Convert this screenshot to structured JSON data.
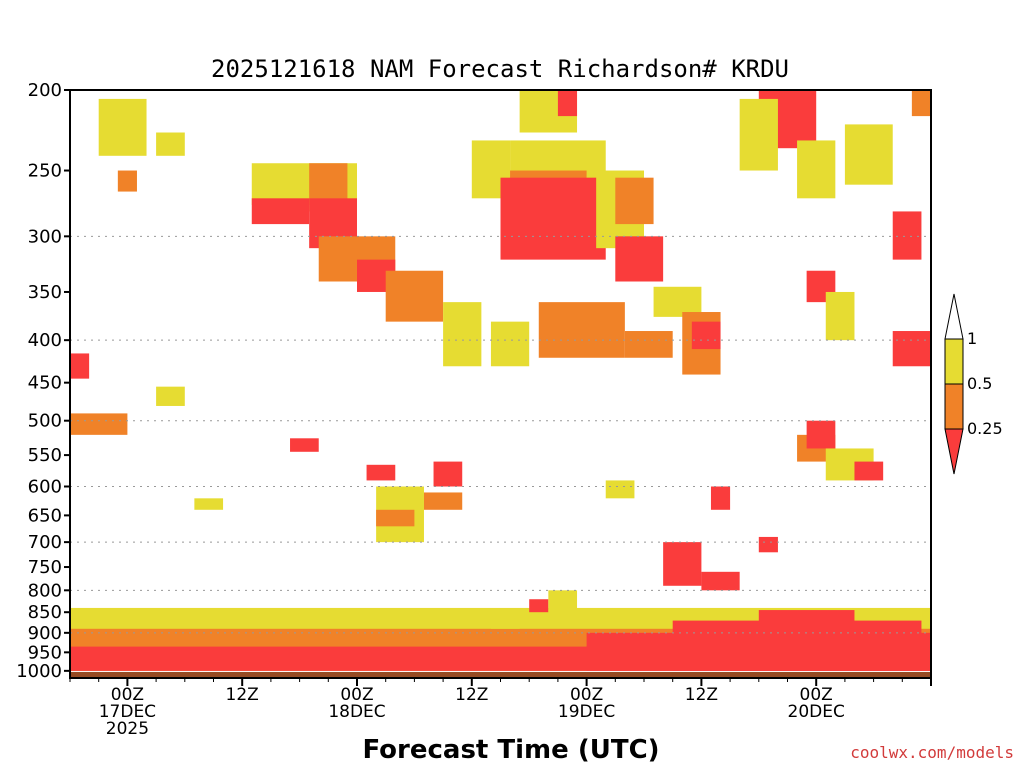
{
  "chart_data": {
    "type": "heatmap",
    "title": "2025121618 NAM Forecast Richardson# KRDU",
    "xlabel": "Forecast Time (UTC)",
    "ylabel": "",
    "credit": "coolwx.com/models",
    "x_start_hours": -6,
    "x_end_hours": 84,
    "x_ticks": [
      {
        "hour": 0,
        "lines": [
          "00Z",
          "17DEC",
          "2025"
        ]
      },
      {
        "hour": 12,
        "lines": [
          "12Z"
        ]
      },
      {
        "hour": 24,
        "lines": [
          "00Z",
          "18DEC"
        ]
      },
      {
        "hour": 36,
        "lines": [
          "12Z"
        ]
      },
      {
        "hour": 48,
        "lines": [
          "00Z",
          "19DEC"
        ]
      },
      {
        "hour": 60,
        "lines": [
          "12Z"
        ]
      },
      {
        "hour": 72,
        "lines": [
          "00Z",
          "20DEC"
        ]
      }
    ],
    "y_ticks": [
      "200",
      "250",
      "300",
      "350",
      "400",
      "450",
      "500",
      "550",
      "600",
      "650",
      "700",
      "750",
      "800",
      "850",
      "900",
      "950",
      "1000"
    ],
    "y_range_hpa": [
      200,
      1020
    ],
    "y_gridlines_hpa": [
      300,
      400,
      500,
      600,
      700,
      800,
      900
    ],
    "legend": {
      "levels": [
        "1",
        "0.5",
        "0.25"
      ],
      "bins": [
        {
          "label": "> 1",
          "color": "#ffffff"
        },
        {
          "label": "0.5 - 1",
          "color": "#e6dc32"
        },
        {
          "label": "0.25 - 0.5",
          "color": "#f08228"
        },
        {
          "label": "< 0.25",
          "color": "#fa3c3c"
        }
      ]
    },
    "ground_color": "#964b23",
    "regions": [
      {
        "bin": "0.5 - 1",
        "x": [
          -6,
          84
        ],
        "p": [
          840,
          1000
        ]
      },
      {
        "bin": "0.25 - 0.5",
        "x": [
          -6,
          84
        ],
        "p": [
          890,
          1000
        ]
      },
      {
        "bin": "< 0.25",
        "x": [
          -6,
          84
        ],
        "p": [
          935,
          1000
        ]
      },
      {
        "bin": "< 0.25",
        "x": [
          48,
          84
        ],
        "p": [
          900,
          1000
        ]
      },
      {
        "bin": "< 0.25",
        "x": [
          57,
          83
        ],
        "p": [
          870,
          1000
        ]
      },
      {
        "bin": "< 0.25",
        "x": [
          66,
          76
        ],
        "p": [
          845,
          1000
        ]
      },
      {
        "bin": "0.5 - 1",
        "x": [
          -3,
          2
        ],
        "p": [
          205,
          240
        ]
      },
      {
        "bin": "0.25 - 0.5",
        "x": [
          -1,
          1
        ],
        "p": [
          250,
          265
        ]
      },
      {
        "bin": "0.5 - 1",
        "x": [
          3,
          6
        ],
        "p": [
          225,
          240
        ]
      },
      {
        "bin": "0.5 - 1",
        "x": [
          13,
          24
        ],
        "p": [
          245,
          275
        ]
      },
      {
        "bin": "< 0.25",
        "x": [
          13,
          19
        ],
        "p": [
          270,
          290
        ]
      },
      {
        "bin": "0.25 - 0.5",
        "x": [
          19,
          23
        ],
        "p": [
          245,
          280
        ]
      },
      {
        "bin": "< 0.25",
        "x": [
          19,
          24
        ],
        "p": [
          270,
          310
        ]
      },
      {
        "bin": "0.25 - 0.5",
        "x": [
          20,
          28
        ],
        "p": [
          300,
          340
        ]
      },
      {
        "bin": "< 0.25",
        "x": [
          24,
          28
        ],
        "p": [
          320,
          350
        ]
      },
      {
        "bin": "0.25 - 0.5",
        "x": [
          27,
          33
        ],
        "p": [
          330,
          380
        ]
      },
      {
        "bin": "0.5 - 1",
        "x": [
          33,
          37
        ],
        "p": [
          360,
          430
        ]
      },
      {
        "bin": "0.5 - 1",
        "x": [
          36,
          40
        ],
        "p": [
          230,
          270
        ]
      },
      {
        "bin": "0.5 - 1",
        "x": [
          40,
          50
        ],
        "p": [
          230,
          300
        ]
      },
      {
        "bin": "0.25 - 0.5",
        "x": [
          40,
          48
        ],
        "p": [
          250,
          290
        ]
      },
      {
        "bin": "< 0.25",
        "x": [
          39,
          50
        ],
        "p": [
          255,
          320
        ]
      },
      {
        "bin": "0.5 - 1",
        "x": [
          41,
          47
        ],
        "p": [
          200,
          225
        ]
      },
      {
        "bin": "< 0.25",
        "x": [
          45,
          47
        ],
        "p": [
          200,
          215
        ]
      },
      {
        "bin": "0.5 - 1",
        "x": [
          49,
          54
        ],
        "p": [
          250,
          310
        ]
      },
      {
        "bin": "0.25 - 0.5",
        "x": [
          51,
          55
        ],
        "p": [
          255,
          290
        ]
      },
      {
        "bin": "< 0.25",
        "x": [
          51,
          56
        ],
        "p": [
          300,
          340
        ]
      },
      {
        "bin": "0.25 - 0.5",
        "x": [
          43,
          52
        ],
        "p": [
          360,
          420
        ]
      },
      {
        "bin": "0.5 - 1",
        "x": [
          38,
          42
        ],
        "p": [
          380,
          430
        ]
      },
      {
        "bin": "0.25 - 0.5",
        "x": [
          52,
          57
        ],
        "p": [
          390,
          420
        ]
      },
      {
        "bin": "0.5 - 1",
        "x": [
          55,
          60
        ],
        "p": [
          345,
          375
        ]
      },
      {
        "bin": "0.25 - 0.5",
        "x": [
          58,
          62
        ],
        "p": [
          370,
          440
        ]
      },
      {
        "bin": "< 0.25",
        "x": [
          59,
          62
        ],
        "p": [
          380,
          410
        ]
      },
      {
        "bin": "< 0.25",
        "x": [
          66,
          72
        ],
        "p": [
          200,
          235
        ]
      },
      {
        "bin": "0.5 - 1",
        "x": [
          64,
          68
        ],
        "p": [
          205,
          250
        ]
      },
      {
        "bin": "0.5 - 1",
        "x": [
          70,
          74
        ],
        "p": [
          230,
          270
        ]
      },
      {
        "bin": "0.5 - 1",
        "x": [
          75,
          80
        ],
        "p": [
          220,
          260
        ]
      },
      {
        "bin": "< 0.25",
        "x": [
          80,
          83
        ],
        "p": [
          280,
          320
        ]
      },
      {
        "bin": "0.25 - 0.5",
        "x": [
          82,
          84
        ],
        "p": [
          200,
          215
        ]
      },
      {
        "bin": "< 0.25",
        "x": [
          71,
          74
        ],
        "p": [
          330,
          360
        ]
      },
      {
        "bin": "0.5 - 1",
        "x": [
          73,
          76
        ],
        "p": [
          350,
          400
        ]
      },
      {
        "bin": "< 0.25",
        "x": [
          80,
          84
        ],
        "p": [
          390,
          430
        ]
      },
      {
        "bin": "0.25 - 0.5",
        "x": [
          -6,
          0
        ],
        "p": [
          490,
          520
        ]
      },
      {
        "bin": "< 0.25",
        "x": [
          -6,
          -4
        ],
        "p": [
          415,
          445
        ]
      },
      {
        "bin": "0.5 - 1",
        "x": [
          3,
          6
        ],
        "p": [
          455,
          480
        ]
      },
      {
        "bin": "0.5 - 1",
        "x": [
          7,
          10
        ],
        "p": [
          620,
          640
        ]
      },
      {
        "bin": "< 0.25",
        "x": [
          17,
          20
        ],
        "p": [
          525,
          545
        ]
      },
      {
        "bin": "< 0.25",
        "x": [
          25,
          28
        ],
        "p": [
          565,
          590
        ]
      },
      {
        "bin": "0.5 - 1",
        "x": [
          26,
          31
        ],
        "p": [
          600,
          700
        ]
      },
      {
        "bin": "0.25 - 0.5",
        "x": [
          26,
          30
        ],
        "p": [
          640,
          670
        ]
      },
      {
        "bin": "< 0.25",
        "x": [
          32,
          35
        ],
        "p": [
          560,
          600
        ]
      },
      {
        "bin": "0.25 - 0.5",
        "x": [
          31,
          35
        ],
        "p": [
          610,
          640
        ]
      },
      {
        "bin": "0.5 - 1",
        "x": [
          38,
          41
        ],
        "p": [
          860,
          890
        ]
      },
      {
        "bin": "< 0.25",
        "x": [
          42,
          44
        ],
        "p": [
          820,
          850
        ]
      },
      {
        "bin": "0.5 - 1",
        "x": [
          44,
          47
        ],
        "p": [
          800,
          850
        ]
      },
      {
        "bin": "< 0.25",
        "x": [
          56,
          60
        ],
        "p": [
          700,
          790
        ]
      },
      {
        "bin": "< 0.25",
        "x": [
          60,
          64
        ],
        "p": [
          760,
          800
        ]
      },
      {
        "bin": "0.25 - 0.5",
        "x": [
          70,
          74
        ],
        "p": [
          520,
          560
        ]
      },
      {
        "bin": "< 0.25",
        "x": [
          71,
          74
        ],
        "p": [
          500,
          540
        ]
      },
      {
        "bin": "0.5 - 1",
        "x": [
          73,
          78
        ],
        "p": [
          540,
          590
        ]
      },
      {
        "bin": "< 0.25",
        "x": [
          76,
          79
        ],
        "p": [
          560,
          590
        ]
      },
      {
        "bin": "< 0.25",
        "x": [
          66,
          68
        ],
        "p": [
          690,
          720
        ]
      },
      {
        "bin": "0.5 - 1",
        "x": [
          50,
          53
        ],
        "p": [
          590,
          620
        ]
      },
      {
        "bin": "< 0.25",
        "x": [
          61,
          63
        ],
        "p": [
          600,
          640
        ]
      }
    ]
  }
}
